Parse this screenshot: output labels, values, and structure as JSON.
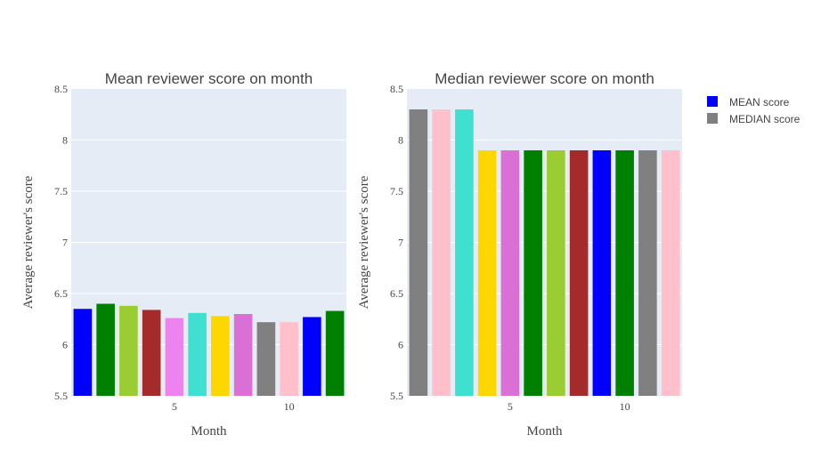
{
  "legend": [
    {
      "label": "MEAN score",
      "color": "#0000ff"
    },
    {
      "label": "MEDIAN score",
      "color": "#808080"
    }
  ],
  "chart_data": [
    {
      "type": "bar",
      "title": "Mean reviewer score on month",
      "xlabel": "Month",
      "ylabel": "Average reviewer's score",
      "x": [
        1,
        2,
        3,
        4,
        5,
        6,
        7,
        8,
        9,
        10,
        11,
        12
      ],
      "values": [
        6.35,
        6.4,
        6.38,
        6.34,
        6.26,
        6.31,
        6.28,
        6.3,
        6.22,
        6.22,
        6.27,
        6.33
      ],
      "colors": [
        "#0000ff",
        "#008000",
        "#9acd32",
        "#a52a2a",
        "#ee82ee",
        "#40e0d0",
        "#ffd700",
        "#da70d6",
        "#808080",
        "#ffc0cb",
        "#0000ff",
        "#008000"
      ],
      "ylim": [
        5.5,
        8.5
      ],
      "xticks": [
        5,
        10
      ],
      "yticks": [
        "5.5",
        "6",
        "6.5",
        "7",
        "7.5",
        "8",
        "8.5"
      ],
      "grid": true
    },
    {
      "type": "bar",
      "title": "Median reviewer score on month",
      "xlabel": "Month",
      "ylabel": "Average reviewer's score",
      "x": [
        1,
        2,
        3,
        4,
        5,
        6,
        7,
        8,
        9,
        10,
        11,
        12
      ],
      "values": [
        8.3,
        8.3,
        8.3,
        7.9,
        7.9,
        7.9,
        7.9,
        7.9,
        7.9,
        7.9,
        7.9,
        7.9
      ],
      "colors": [
        "#808080",
        "#ffc0cb",
        "#40e0d0",
        "#ffd700",
        "#da70d6",
        "#008000",
        "#9acd32",
        "#a52a2a",
        "#0000ff",
        "#008000",
        "#808080",
        "#ffc0cb"
      ],
      "ylim": [
        5.5,
        8.5
      ],
      "xticks": [
        5,
        10
      ],
      "yticks": [
        "5.5",
        "6",
        "6.5",
        "7",
        "7.5",
        "8",
        "8.5"
      ],
      "grid": true
    }
  ]
}
